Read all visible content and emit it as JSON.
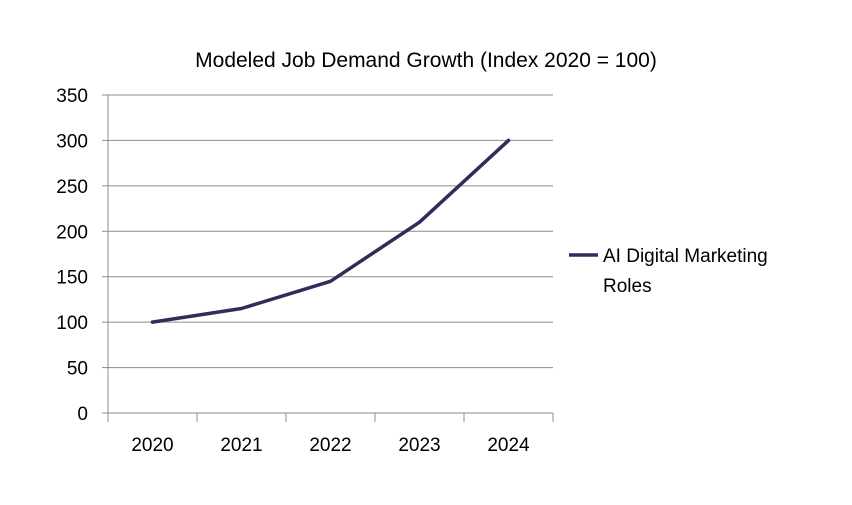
{
  "chart_data": {
    "type": "line",
    "title": "Modeled Job Demand Growth (Index 2020 = 100)",
    "xlabel": "",
    "ylabel": "",
    "categories": [
      "2020",
      "2021",
      "2022",
      "2023",
      "2024"
    ],
    "series": [
      {
        "name": "AI Digital Marketing Roles",
        "values": [
          100,
          115,
          145,
          210,
          300
        ],
        "color": "#2e2d5c"
      }
    ],
    "ylim": [
      0,
      350
    ],
    "yticks": [
      0,
      50,
      100,
      150,
      200,
      250,
      300,
      350
    ],
    "grid": true,
    "legend_position": "right"
  }
}
